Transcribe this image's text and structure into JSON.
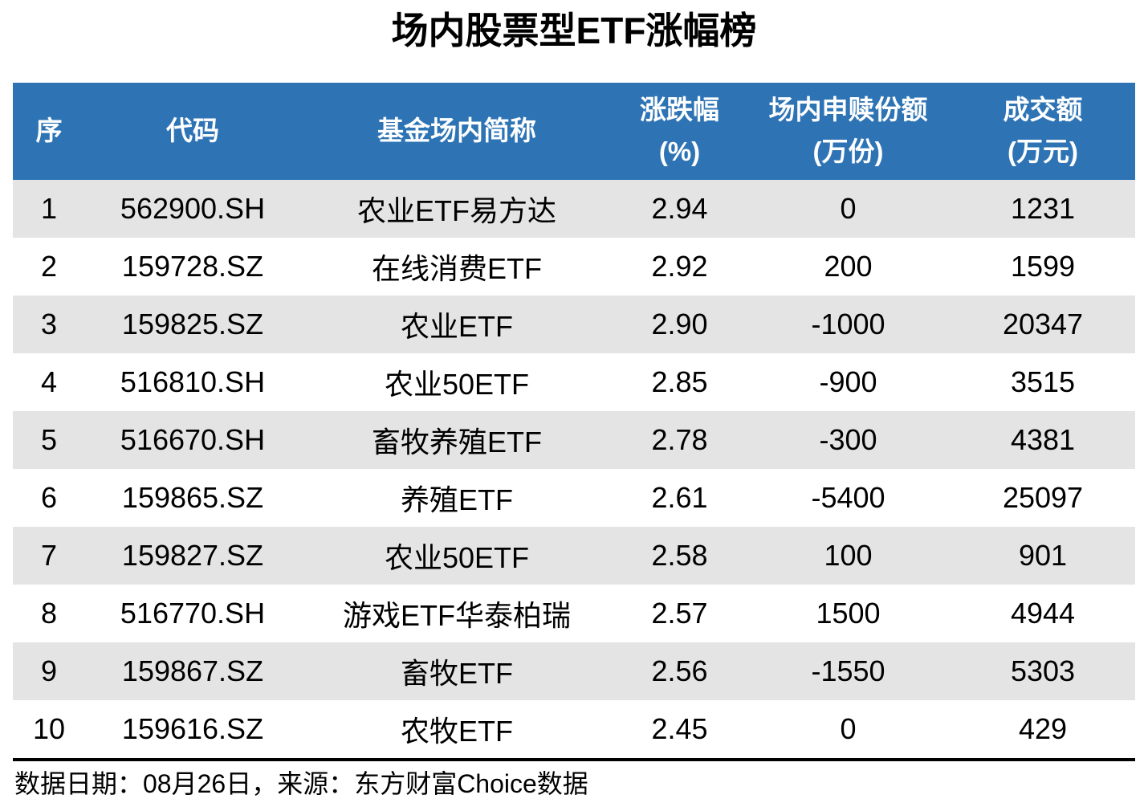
{
  "title": "场内股票型ETF涨幅榜",
  "colors": {
    "header_bg": "#2E74B5",
    "header_text": "#FFFFFF",
    "row_alt_bg": "#E4E4E4",
    "row_bg": "#FFFFFF",
    "text_color": "#000000",
    "divider": "#000000"
  },
  "table": {
    "columns": [
      {
        "label": "序",
        "sub": ""
      },
      {
        "label": "代码",
        "sub": ""
      },
      {
        "label": "基金场内简称",
        "sub": ""
      },
      {
        "label": "涨跌幅",
        "sub": "(%)"
      },
      {
        "label": "场内申赎份额",
        "sub": "(万份)"
      },
      {
        "label": "成交额",
        "sub": "(万元)"
      }
    ],
    "rows": [
      [
        "1",
        "562900.SH",
        "农业ETF易方达",
        "2.94",
        "0",
        "1231"
      ],
      [
        "2",
        "159728.SZ",
        "在线消费ETF",
        "2.92",
        "200",
        "1599"
      ],
      [
        "3",
        "159825.SZ",
        "农业ETF",
        "2.90",
        "-1000",
        "20347"
      ],
      [
        "4",
        "516810.SH",
        "农业50ETF",
        "2.85",
        "-900",
        "3515"
      ],
      [
        "5",
        "516670.SH",
        "畜牧养殖ETF",
        "2.78",
        "-300",
        "4381"
      ],
      [
        "6",
        "159865.SZ",
        "养殖ETF",
        "2.61",
        "-5400",
        "25097"
      ],
      [
        "7",
        "159827.SZ",
        "农业50ETF",
        "2.58",
        "100",
        "901"
      ],
      [
        "8",
        "516770.SH",
        "游戏ETF华泰柏瑞",
        "2.57",
        "1500",
        "4944"
      ],
      [
        "9",
        "159867.SZ",
        "畜牧ETF",
        "2.56",
        "-1550",
        "5303"
      ],
      [
        "10",
        "159616.SZ",
        "农牧ETF",
        "2.45",
        "0",
        "429"
      ]
    ]
  },
  "footer": {
    "text": "数据日期：08月26日，来源：东方财富Choice数据",
    "data_date": "08月26日",
    "source": "东方财富Choice数据"
  },
  "chart_data": {
    "type": "table",
    "title": "场内股票型ETF涨幅榜",
    "columns": [
      "序",
      "代码",
      "基金场内简称",
      "涨跌幅(%)",
      "场内申赎份额(万份)",
      "成交额(万元)"
    ],
    "rows": [
      [
        1,
        "562900.SH",
        "农业ETF易方达",
        2.94,
        0,
        1231
      ],
      [
        2,
        "159728.SZ",
        "在线消费ETF",
        2.92,
        200,
        1599
      ],
      [
        3,
        "159825.SZ",
        "农业ETF",
        2.9,
        -1000,
        20347
      ],
      [
        4,
        "516810.SH",
        "农业50ETF",
        2.85,
        -900,
        3515
      ],
      [
        5,
        "516670.SH",
        "畜牧养殖ETF",
        2.78,
        -300,
        4381
      ],
      [
        6,
        "159865.SZ",
        "养殖ETF",
        2.61,
        -5400,
        25097
      ],
      [
        7,
        "159827.SZ",
        "农业50ETF",
        2.58,
        100,
        901
      ],
      [
        8,
        "516770.SH",
        "游戏ETF华泰柏瑞",
        2.57,
        1500,
        4944
      ],
      [
        9,
        "159867.SZ",
        "畜牧ETF",
        2.56,
        -1550,
        5303
      ],
      [
        10,
        "159616.SZ",
        "农牧ETF",
        2.45,
        0,
        429
      ]
    ],
    "footnote": "数据日期：08月26日，来源：东方财富Choice数据",
    "legend": "none",
    "grid": "off"
  }
}
